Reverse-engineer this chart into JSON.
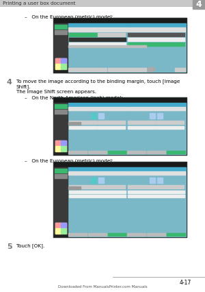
{
  "bg_color": "#ffffff",
  "header_text": "Printing a user box document",
  "header_num": "4",
  "page_num": "4-17",
  "footer_text": "Downloaded From ManualsPrinter.com Manuals",
  "step4_num": "4",
  "step4_line1": "To move the image according to the binding margin, touch [Image",
  "step4_line2": "Shift].",
  "step4_line3": "The Image Shift screen appears.",
  "step5_num": "5",
  "step5_text": "Touch [OK].",
  "label_metric1": "–   On the European (metric) model:",
  "label_inch": "–   On the North American (inch) model:",
  "label_metric2": "–   On the European (metric) model:",
  "c_bg": "#7ab8c8",
  "c_dark": "#1a1a1a",
  "c_green": "#3ab870",
  "c_teal": "#55c8c8",
  "c_lgray": "#cccccc",
  "c_mgray": "#888888",
  "c_dgray": "#444444",
  "c_panel": "#3a3a3a",
  "c_blue_btn": "#5588cc",
  "c_white": "#ffffff",
  "c_breadcrumb": "#44aacc",
  "header_bar": "#c8c8c8",
  "header_tab": "#999999"
}
